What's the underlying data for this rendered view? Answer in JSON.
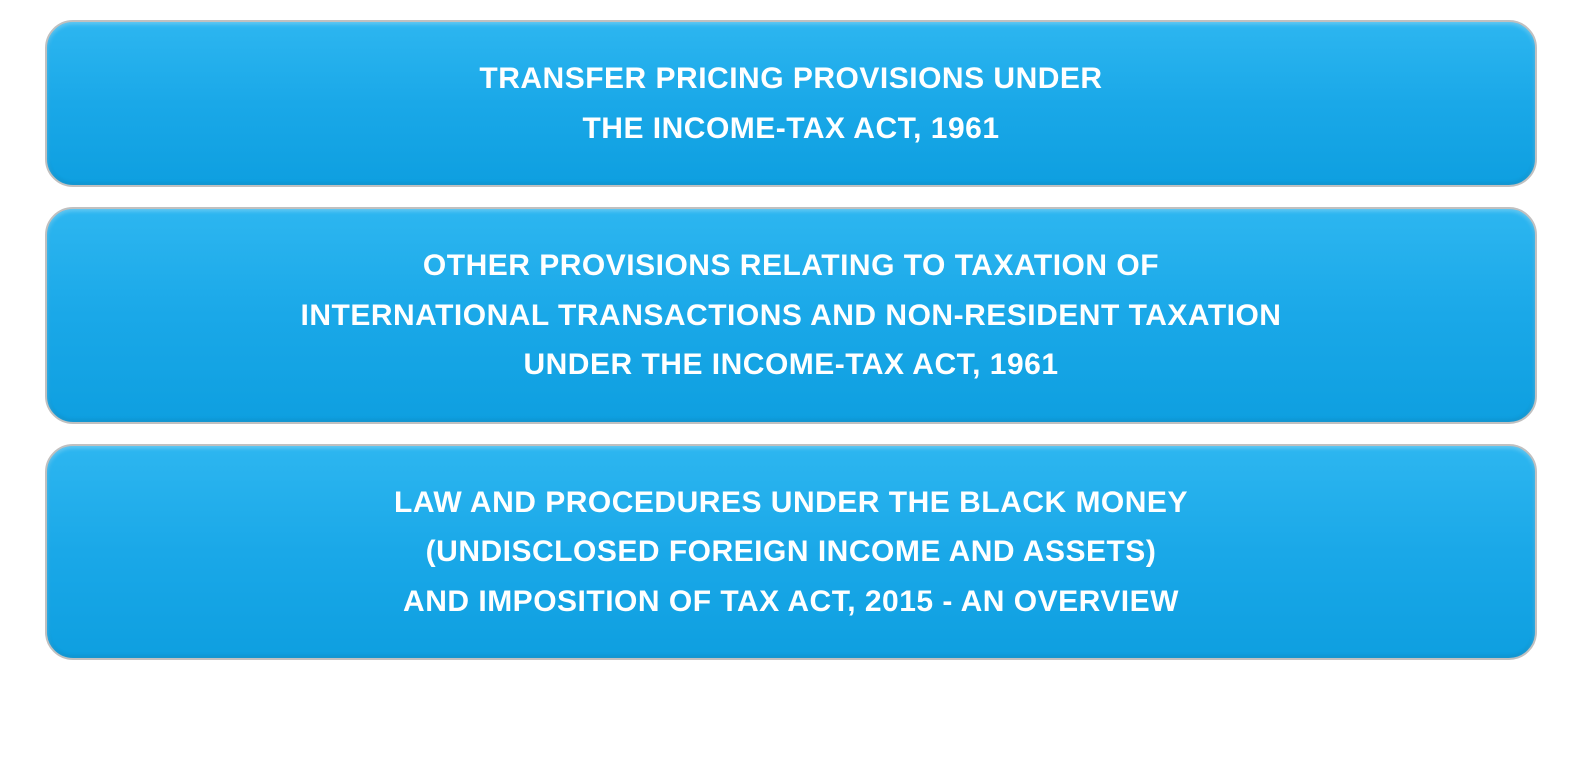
{
  "cards": [
    {
      "lines": [
        "TRANSFER PRICING PROVISIONS UNDER",
        "THE INCOME-TAX ACT, 1961"
      ]
    },
    {
      "lines": [
        "OTHER PROVISIONS RELATING TO TAXATION OF",
        "INTERNATIONAL TRANSACTIONS AND NON-RESIDENT TAXATION",
        "UNDER THE INCOME-TAX ACT, 1961"
      ]
    },
    {
      "lines": [
        "LAW AND PROCEDURES UNDER THE BLACK MONEY",
        "(UNDISCLOSED FOREIGN INCOME AND ASSETS)",
        "AND IMPOSITION OF TAX ACT, 2015 - AN OVERVIEW"
      ]
    }
  ],
  "style": {
    "card_background_gradient_top": "#2db6f0",
    "card_background_gradient_mid": "#1aa8e8",
    "card_background_gradient_bottom": "#0e9fe0",
    "card_border_color": "#c0c0c0",
    "card_border_radius": 28,
    "text_color": "#ffffff",
    "font_size": 30,
    "font_weight": 700,
    "line_height": 1.65,
    "page_background": "#ffffff",
    "card_gap": 20
  }
}
